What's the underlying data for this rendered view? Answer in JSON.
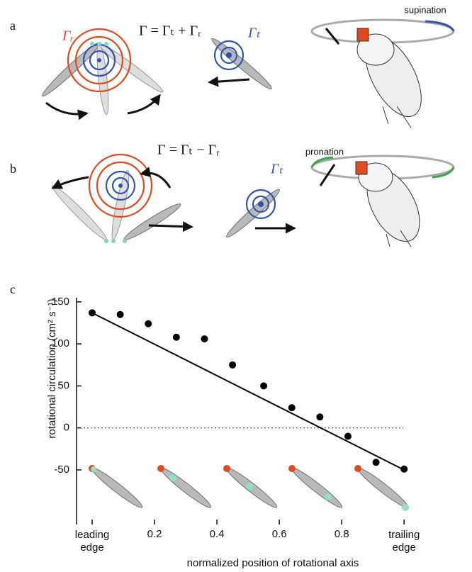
{
  "panels": {
    "a": {
      "label": "a",
      "gamma_r": "Γᵣ",
      "equation": "Γ = Γₜ + Γᵣ",
      "gamma_t": "Γₜ",
      "annotation": "supination"
    },
    "b": {
      "label": "b",
      "equation": "Γ = Γₜ − Γᵣ",
      "gamma_t": "Γₜ",
      "annotation": "pronation"
    }
  },
  "chart_data": {
    "type": "scatter",
    "panel_label": "c",
    "x_label": "normalized position of rotational axis",
    "y_label": "rotational circulation  (cm² s⁻¹)",
    "x": [
      0,
      0.09,
      0.18,
      0.27,
      0.36,
      0.45,
      0.55,
      0.64,
      0.73,
      0.82,
      0.91,
      1.0
    ],
    "values": [
      137,
      135,
      124,
      108,
      106,
      75,
      50,
      24,
      13,
      -10,
      -41,
      -49
    ],
    "color": "#000000",
    "fit": {
      "x": [
        0,
        1
      ],
      "values": [
        137,
        -50
      ],
      "color": "#000000"
    },
    "reference_line": 0,
    "xlim": [
      -0.05,
      1.02
    ],
    "ylim": [
      -115,
      155
    ],
    "xticks": [
      {
        "value": 0,
        "label": "leading edge"
      },
      0.2,
      0.4,
      0.6,
      0.8,
      {
        "value": 1,
        "label": "trailing edge"
      }
    ],
    "yticks": [
      -50,
      0,
      50,
      100,
      150
    ]
  }
}
